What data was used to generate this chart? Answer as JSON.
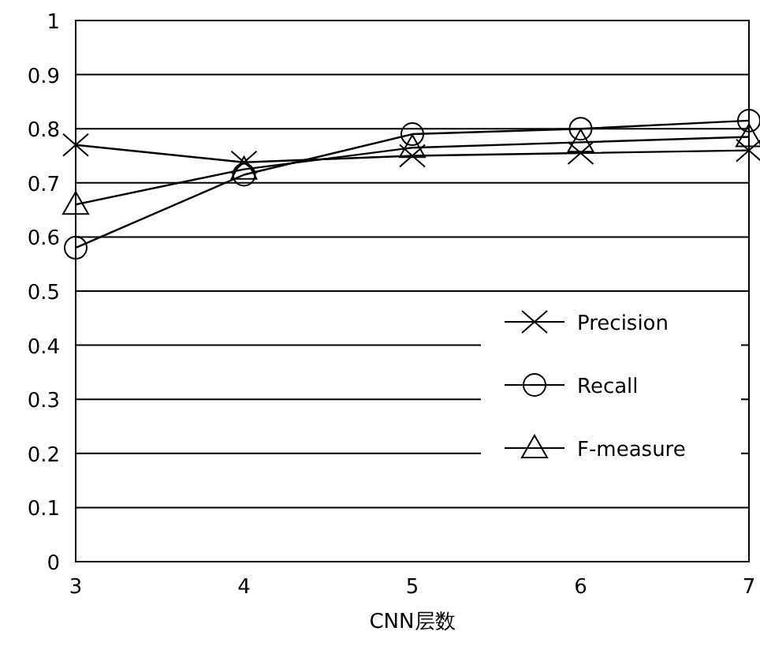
{
  "chart_data": {
    "type": "line",
    "xlabel": "CNN层数",
    "x": [
      3,
      4,
      5,
      6,
      7
    ],
    "xlim": [
      3,
      7
    ],
    "xticks": [
      3,
      4,
      5,
      6,
      7
    ],
    "ylim": [
      0,
      1
    ],
    "yticks": [
      0,
      0.1,
      0.2,
      0.3,
      0.4,
      0.5,
      0.6,
      0.7,
      0.8,
      0.9,
      1
    ],
    "grid": "y",
    "legend": "right",
    "line_style": "solid",
    "series": [
      {
        "name": "Precision",
        "color": "#000000",
        "marker": "cross",
        "values": [
          0.77,
          0.738,
          0.75,
          0.755,
          0.76
        ]
      },
      {
        "name": "Recall",
        "color": "#000000",
        "marker": "circle",
        "values": [
          0.58,
          0.715,
          0.79,
          0.8,
          0.815
        ]
      },
      {
        "name": "F-measure",
        "color": "#000000",
        "marker": "triangle",
        "values": [
          0.66,
          0.725,
          0.765,
          0.775,
          0.785
        ]
      }
    ]
  }
}
